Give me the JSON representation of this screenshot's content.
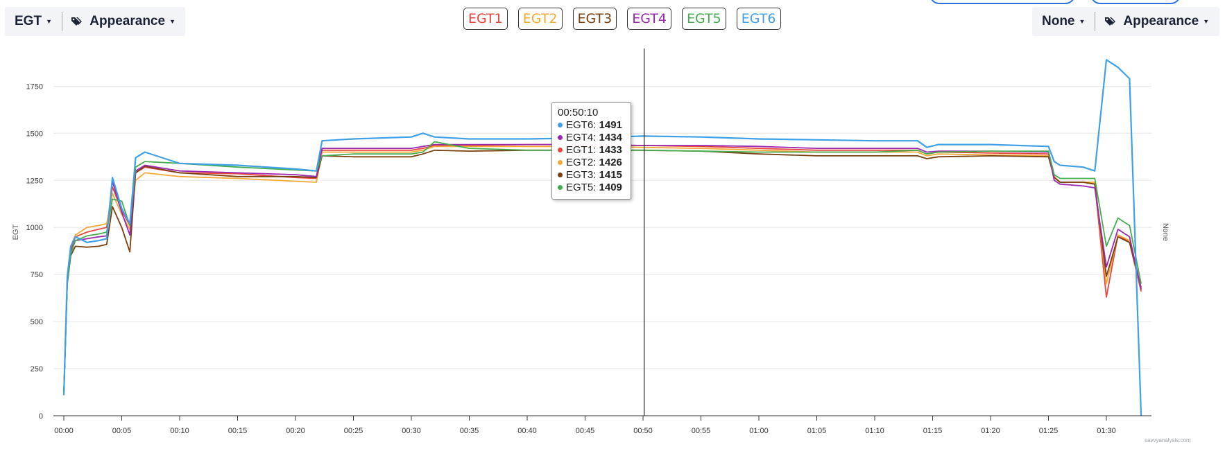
{
  "left_toolbar": {
    "axis_select": "EGT",
    "appearance": "Appearance"
  },
  "right_toolbar": {
    "axis_select": "None",
    "appearance": "Appearance"
  },
  "series_toggles": [
    {
      "label": "EGT1",
      "color": "#e8453c"
    },
    {
      "label": "EGT2",
      "color": "#f5a833"
    },
    {
      "label": "EGT3",
      "color": "#7a3f0f"
    },
    {
      "label": "EGT4",
      "color": "#9c27b0"
    },
    {
      "label": "EGT5",
      "color": "#45ad50"
    },
    {
      "label": "EGT6",
      "color": "#3fa0e8"
    }
  ],
  "chart_data": {
    "type": "line",
    "xlabel": "",
    "ylabel": "EGT",
    "y2label": "None",
    "ylim": [
      0,
      1950
    ],
    "xlim_minutes": [
      0,
      95
    ],
    "y_ticks": [
      0,
      250,
      500,
      750,
      1000,
      1250,
      1500,
      1750
    ],
    "x_ticks": [
      "00:00",
      "00:05",
      "00:10",
      "00:15",
      "00:20",
      "00:25",
      "00:30",
      "00:35",
      "00:40",
      "00:45",
      "00:50",
      "00:55",
      "01:00",
      "01:05",
      "01:10",
      "01:15",
      "01:20",
      "01:25",
      "01:30"
    ],
    "grid": true,
    "legend": "top-center",
    "crosshair_time": "00:50",
    "x_minutes": [
      0,
      0.3,
      0.6,
      1,
      2,
      3,
      3.7,
      4.2,
      5,
      5.7,
      6.2,
      7,
      10,
      15,
      20,
      21.8,
      22.3,
      25,
      30,
      31,
      32,
      35,
      40,
      45,
      50,
      55,
      60,
      65,
      70,
      73.7,
      74.5,
      75.5,
      80,
      85,
      85.5,
      86,
      88,
      89,
      90,
      91,
      92,
      93
    ],
    "series": [
      {
        "name": "EGT1",
        "color": "#e8453c",
        "values": [
          110,
          720,
          880,
          950,
          975,
          990,
          1000,
          1215,
          1090,
          1010,
          1290,
          1320,
          1290,
          1285,
          1265,
          1260,
          1410,
          1410,
          1410,
          1420,
          1435,
          1435,
          1440,
          1440,
          1435,
          1430,
          1420,
          1410,
          1410,
          1410,
          1390,
          1400,
          1395,
          1390,
          1270,
          1240,
          1240,
          1230,
          630,
          960,
          920,
          660
        ]
      },
      {
        "name": "EGT2",
        "color": "#f5a833",
        "values": [
          110,
          730,
          900,
          960,
          1000,
          1010,
          1020,
          1180,
          1070,
          990,
          1250,
          1290,
          1270,
          1260,
          1245,
          1240,
          1400,
          1400,
          1400,
          1410,
          1430,
          1430,
          1430,
          1430,
          1425,
          1420,
          1410,
          1400,
          1400,
          1400,
          1380,
          1390,
          1385,
          1380,
          1270,
          1240,
          1240,
          1240,
          700,
          960,
          930,
          670
        ]
      },
      {
        "name": "EGT3",
        "color": "#7a3f0f",
        "values": [
          110,
          700,
          850,
          900,
          895,
          900,
          910,
          1110,
          1000,
          870,
          1290,
          1325,
          1290,
          1270,
          1270,
          1265,
          1380,
          1375,
          1375,
          1390,
          1410,
          1405,
          1410,
          1410,
          1410,
          1405,
          1390,
          1380,
          1380,
          1380,
          1365,
          1375,
          1380,
          1375,
          1265,
          1240,
          1240,
          1230,
          740,
          950,
          920,
          680
        ]
      },
      {
        "name": "EGT4",
        "color": "#9c27b0",
        "values": [
          110,
          720,
          870,
          930,
          940,
          950,
          955,
          1245,
          1080,
          960,
          1300,
          1330,
          1300,
          1290,
          1280,
          1270,
          1420,
          1420,
          1420,
          1430,
          1440,
          1440,
          1440,
          1440,
          1435,
          1435,
          1430,
          1420,
          1420,
          1420,
          1400,
          1405,
          1405,
          1400,
          1250,
          1230,
          1220,
          1210,
          790,
          990,
          950,
          670
        ]
      },
      {
        "name": "EGT5",
        "color": "#45ad50",
        "values": [
          110,
          710,
          860,
          930,
          955,
          965,
          975,
          1150,
          1140,
          1010,
          1320,
          1350,
          1340,
          1320,
          1305,
          1300,
          1380,
          1390,
          1390,
          1400,
          1455,
          1420,
          1410,
          1410,
          1410,
          1405,
          1400,
          1400,
          1400,
          1410,
          1390,
          1400,
          1405,
          1405,
          1280,
          1260,
          1260,
          1260,
          900,
          1050,
          1010,
          700
        ]
      },
      {
        "name": "EGT6",
        "color": "#3fa0e8",
        "values": [
          110,
          740,
          900,
          950,
          920,
          930,
          940,
          1265,
          1100,
          1020,
          1370,
          1400,
          1340,
          1330,
          1310,
          1300,
          1460,
          1470,
          1480,
          1500,
          1480,
          1470,
          1470,
          1475,
          1485,
          1480,
          1470,
          1465,
          1460,
          1460,
          1425,
          1440,
          1440,
          1430,
          1350,
          1330,
          1320,
          1300,
          1890,
          1850,
          1790,
          0
        ]
      }
    ]
  },
  "tooltip": {
    "time": "00:50:10",
    "rows": [
      {
        "label": "EGT6:",
        "value": "1491",
        "color": "#3fa0e8"
      },
      {
        "label": "EGT4:",
        "value": "1434",
        "color": "#9c27b0"
      },
      {
        "label": "EGT1:",
        "value": "1433",
        "color": "#e8453c"
      },
      {
        "label": "EGT2:",
        "value": "1426",
        "color": "#f5a833"
      },
      {
        "label": "EGT3:",
        "value": "1415",
        "color": "#7a3f0f"
      },
      {
        "label": "EGT5:",
        "value": "1409",
        "color": "#45ad50"
      }
    ]
  },
  "watermark": "savvyanalysis.com"
}
